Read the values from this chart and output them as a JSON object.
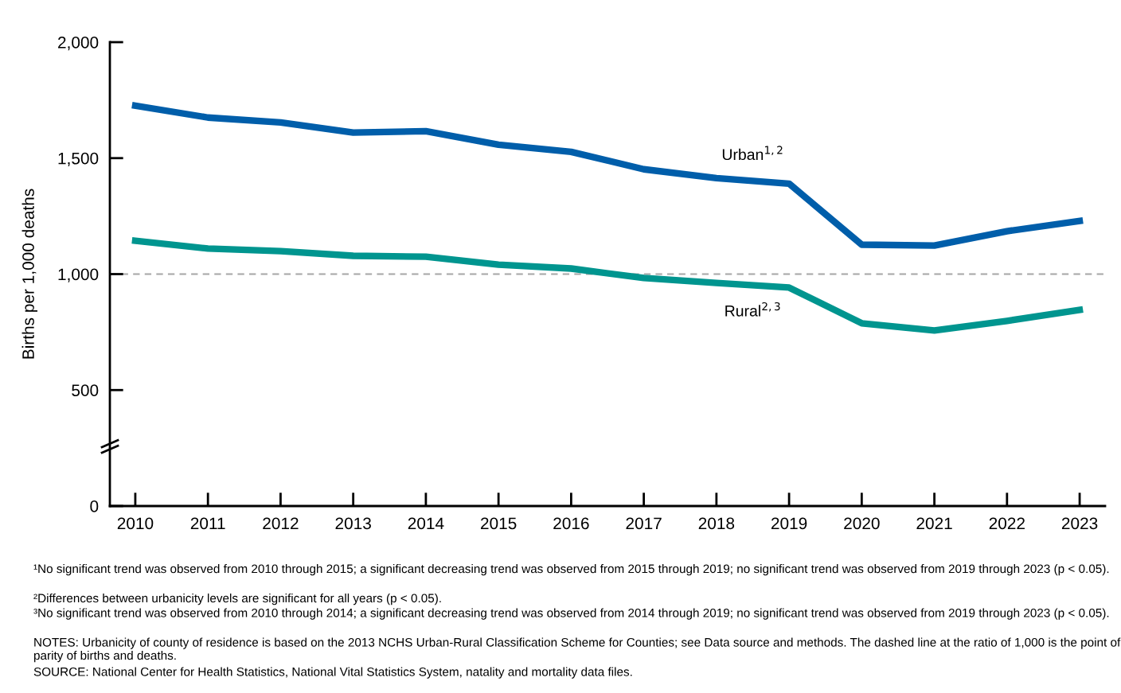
{
  "chart_data": {
    "type": "line",
    "ylabel": "Births per 1,000 deaths",
    "x": [
      2010,
      2011,
      2012,
      2013,
      2014,
      2015,
      2016,
      2017,
      2018,
      2019,
      2020,
      2021,
      2022,
      2023
    ],
    "series": [
      {
        "name": "Urban$^{1,2}$",
        "color": "#005eaa",
        "values": [
          1726,
          1675,
          1654,
          1610,
          1616,
          1558,
          1527,
          1452,
          1414,
          1390,
          1127,
          1123,
          1185,
          1229
        ]
      },
      {
        "name": "Rural$^{2,3}$",
        "color": "#00958f",
        "values": [
          1144,
          1110,
          1099,
          1079,
          1075,
          1041,
          1024,
          983,
          962,
          942,
          788,
          757,
          798,
          846
        ]
      }
    ],
    "xlim": [
      2009.65,
      2023.35
    ],
    "xticks": [
      2010,
      2011,
      2012,
      2013,
      2014,
      2015,
      2016,
      2017,
      2018,
      2019,
      2020,
      2021,
      2022,
      2023
    ],
    "ylim": [
      0,
      2000
    ],
    "yticks": [
      {
        "value": 0,
        "label": "0"
      },
      {
        "value": 500,
        "label": "500"
      },
      {
        "value": 1000,
        "label": "1,000"
      },
      {
        "value": 1500,
        "label": "1,500"
      },
      {
        "value": 2000,
        "label": "2,000"
      }
    ],
    "ref_lines": [
      {
        "axis": "y",
        "value": 1000,
        "color": "#a6a6a6",
        "line_style": "dashed"
      }
    ],
    "grid": false,
    "legend": false,
    "marker": "none",
    "line_style": "solid",
    "annotations": [
      "¹No significant trend was observed from 2010 through 2015; a significant decreasing trend was observed from 2015 through 2019; no significant trend was observed from 2019 through 2023 (p < 0.05).",
      "²Differences between urbanicity levels are significant for all years (p < 0.05).",
      "³No significant trend was observed from 2010 through 2014; a significant decreasing trend was observed from 2014 through 2019; no significant trend was observed from 2019 through 2023 (p < 0.05).",
      "NOTES: Urbanicity of county of residence is based on the 2013 NCHS Urban-Rural Classification Scheme for Counties; see Data source and methods. The dashed line at the ratio of 1,000 is the point of parity of births and deaths.",
      "SOURCE: National Center for Health Statistics, National Vital Statistics System, natality and mortality data files."
    ]
  }
}
